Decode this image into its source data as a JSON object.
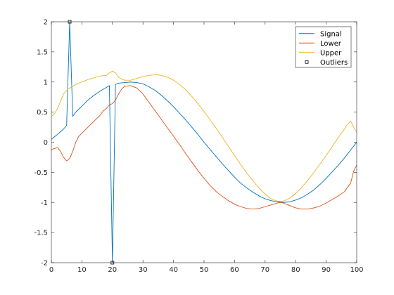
{
  "chart_data": {
    "type": "line",
    "x_ticks": [
      0,
      10,
      20,
      30,
      40,
      50,
      60,
      70,
      80,
      90,
      100
    ],
    "y_ticks": [
      -2,
      -1.5,
      -1,
      -0.5,
      0,
      0.5,
      1,
      1.5,
      2
    ],
    "xlim": [
      0,
      100
    ],
    "ylim": [
      -2,
      2
    ],
    "grid": false,
    "legend_position": "top-right",
    "series": [
      {
        "name": "Signal",
        "color": "#0072BD",
        "points": [
          [
            0,
            0.05
          ],
          [
            2,
            0.13
          ],
          [
            4,
            0.22
          ],
          [
            5,
            0.28
          ],
          [
            6,
            2.0
          ],
          [
            7,
            0.43
          ],
          [
            8,
            0.5
          ],
          [
            10,
            0.6
          ],
          [
            12,
            0.7
          ],
          [
            14,
            0.78
          ],
          [
            16,
            0.85
          ],
          [
            18,
            0.91
          ],
          [
            19,
            0.94
          ],
          [
            20,
            -2.0
          ],
          [
            21,
            0.96
          ],
          [
            22,
            0.98
          ],
          [
            24,
            0.99
          ],
          [
            26,
            1.0
          ],
          [
            28,
            0.99
          ],
          [
            30,
            0.97
          ],
          [
            32,
            0.92
          ],
          [
            34,
            0.86
          ],
          [
            36,
            0.78
          ],
          [
            38,
            0.69
          ],
          [
            40,
            0.59
          ],
          [
            42,
            0.48
          ],
          [
            44,
            0.37
          ],
          [
            46,
            0.25
          ],
          [
            48,
            0.13
          ],
          [
            50,
            0.0
          ],
          [
            52,
            -0.12
          ],
          [
            54,
            -0.24
          ],
          [
            56,
            -0.36
          ],
          [
            58,
            -0.47
          ],
          [
            60,
            -0.58
          ],
          [
            62,
            -0.68
          ],
          [
            64,
            -0.76
          ],
          [
            66,
            -0.83
          ],
          [
            68,
            -0.89
          ],
          [
            70,
            -0.94
          ],
          [
            72,
            -0.97
          ],
          [
            74,
            -0.99
          ],
          [
            76,
            -1.0
          ],
          [
            78,
            -0.99
          ],
          [
            80,
            -0.96
          ],
          [
            82,
            -0.92
          ],
          [
            84,
            -0.86
          ],
          [
            86,
            -0.79
          ],
          [
            88,
            -0.7
          ],
          [
            90,
            -0.6
          ],
          [
            92,
            -0.49
          ],
          [
            94,
            -0.38
          ],
          [
            96,
            -0.26
          ],
          [
            98,
            -0.13
          ],
          [
            100,
            0.0
          ]
        ]
      },
      {
        "name": "Lower",
        "color": "#D95319",
        "points": [
          [
            0,
            -0.12
          ],
          [
            2,
            -0.09
          ],
          [
            3,
            -0.15
          ],
          [
            4,
            -0.25
          ],
          [
            5,
            -0.31
          ],
          [
            6,
            -0.27
          ],
          [
            7,
            -0.15
          ],
          [
            8,
            0.0
          ],
          [
            9,
            0.1
          ],
          [
            10,
            0.15
          ],
          [
            12,
            0.25
          ],
          [
            14,
            0.35
          ],
          [
            16,
            0.45
          ],
          [
            17,
            0.52
          ],
          [
            18,
            0.56
          ],
          [
            19,
            0.62
          ],
          [
            20,
            0.64
          ],
          [
            21,
            0.7
          ],
          [
            22,
            0.8
          ],
          [
            23,
            0.88
          ],
          [
            24,
            0.93
          ],
          [
            26,
            0.94
          ],
          [
            28,
            0.9
          ],
          [
            30,
            0.8
          ],
          [
            32,
            0.66
          ],
          [
            34,
            0.52
          ],
          [
            36,
            0.38
          ],
          [
            38,
            0.24
          ],
          [
            40,
            0.1
          ],
          [
            42,
            -0.04
          ],
          [
            44,
            -0.19
          ],
          [
            46,
            -0.33
          ],
          [
            48,
            -0.47
          ],
          [
            50,
            -0.6
          ],
          [
            52,
            -0.72
          ],
          [
            54,
            -0.82
          ],
          [
            56,
            -0.9
          ],
          [
            58,
            -0.97
          ],
          [
            60,
            -1.03
          ],
          [
            62,
            -1.07
          ],
          [
            64,
            -1.1
          ],
          [
            66,
            -1.11
          ],
          [
            68,
            -1.1
          ],
          [
            70,
            -1.07
          ],
          [
            72,
            -1.04
          ],
          [
            74,
            -1.01
          ],
          [
            75,
            -1.0
          ],
          [
            76,
            -1.01
          ],
          [
            78,
            -1.05
          ],
          [
            80,
            -1.09
          ],
          [
            82,
            -1.11
          ],
          [
            84,
            -1.11
          ],
          [
            86,
            -1.09
          ],
          [
            88,
            -1.06
          ],
          [
            90,
            -1.01
          ],
          [
            92,
            -0.95
          ],
          [
            94,
            -0.89
          ],
          [
            96,
            -0.82
          ],
          [
            98,
            -0.68
          ],
          [
            99,
            -0.48
          ],
          [
            100,
            -0.38
          ]
        ]
      },
      {
        "name": "Upper",
        "color": "#EDB120",
        "points": [
          [
            0,
            0.43
          ],
          [
            1,
            0.47
          ],
          [
            2,
            0.56
          ],
          [
            3,
            0.68
          ],
          [
            4,
            0.8
          ],
          [
            5,
            0.86
          ],
          [
            6,
            0.9
          ],
          [
            8,
            0.96
          ],
          [
            10,
            1.0
          ],
          [
            12,
            1.04
          ],
          [
            14,
            1.07
          ],
          [
            16,
            1.1
          ],
          [
            18,
            1.11
          ],
          [
            19,
            1.15
          ],
          [
            20,
            1.18
          ],
          [
            21,
            1.15
          ],
          [
            22,
            1.08
          ],
          [
            23,
            1.05
          ],
          [
            24,
            1.03
          ],
          [
            26,
            1.03
          ],
          [
            28,
            1.06
          ],
          [
            30,
            1.09
          ],
          [
            32,
            1.11
          ],
          [
            34,
            1.12
          ],
          [
            36,
            1.11
          ],
          [
            38,
            1.08
          ],
          [
            40,
            1.03
          ],
          [
            42,
            0.96
          ],
          [
            44,
            0.87
          ],
          [
            46,
            0.76
          ],
          [
            48,
            0.64
          ],
          [
            50,
            0.51
          ],
          [
            52,
            0.37
          ],
          [
            54,
            0.23
          ],
          [
            56,
            0.08
          ],
          [
            58,
            -0.07
          ],
          [
            60,
            -0.22
          ],
          [
            62,
            -0.37
          ],
          [
            64,
            -0.51
          ],
          [
            66,
            -0.64
          ],
          [
            68,
            -0.76
          ],
          [
            70,
            -0.86
          ],
          [
            72,
            -0.94
          ],
          [
            74,
            -0.98
          ],
          [
            76,
            -0.98
          ],
          [
            78,
            -0.93
          ],
          [
            80,
            -0.85
          ],
          [
            82,
            -0.75
          ],
          [
            84,
            -0.63
          ],
          [
            86,
            -0.5
          ],
          [
            88,
            -0.36
          ],
          [
            90,
            -0.22
          ],
          [
            92,
            -0.07
          ],
          [
            94,
            0.08
          ],
          [
            96,
            0.22
          ],
          [
            97,
            0.3
          ],
          [
            98,
            0.35
          ],
          [
            99,
            0.25
          ],
          [
            100,
            0.17
          ]
        ]
      },
      {
        "name": "Outliers",
        "color": "#000000",
        "marker": "square",
        "points": [
          [
            6,
            2.0
          ],
          [
            20,
            -2.0
          ]
        ]
      }
    ]
  }
}
